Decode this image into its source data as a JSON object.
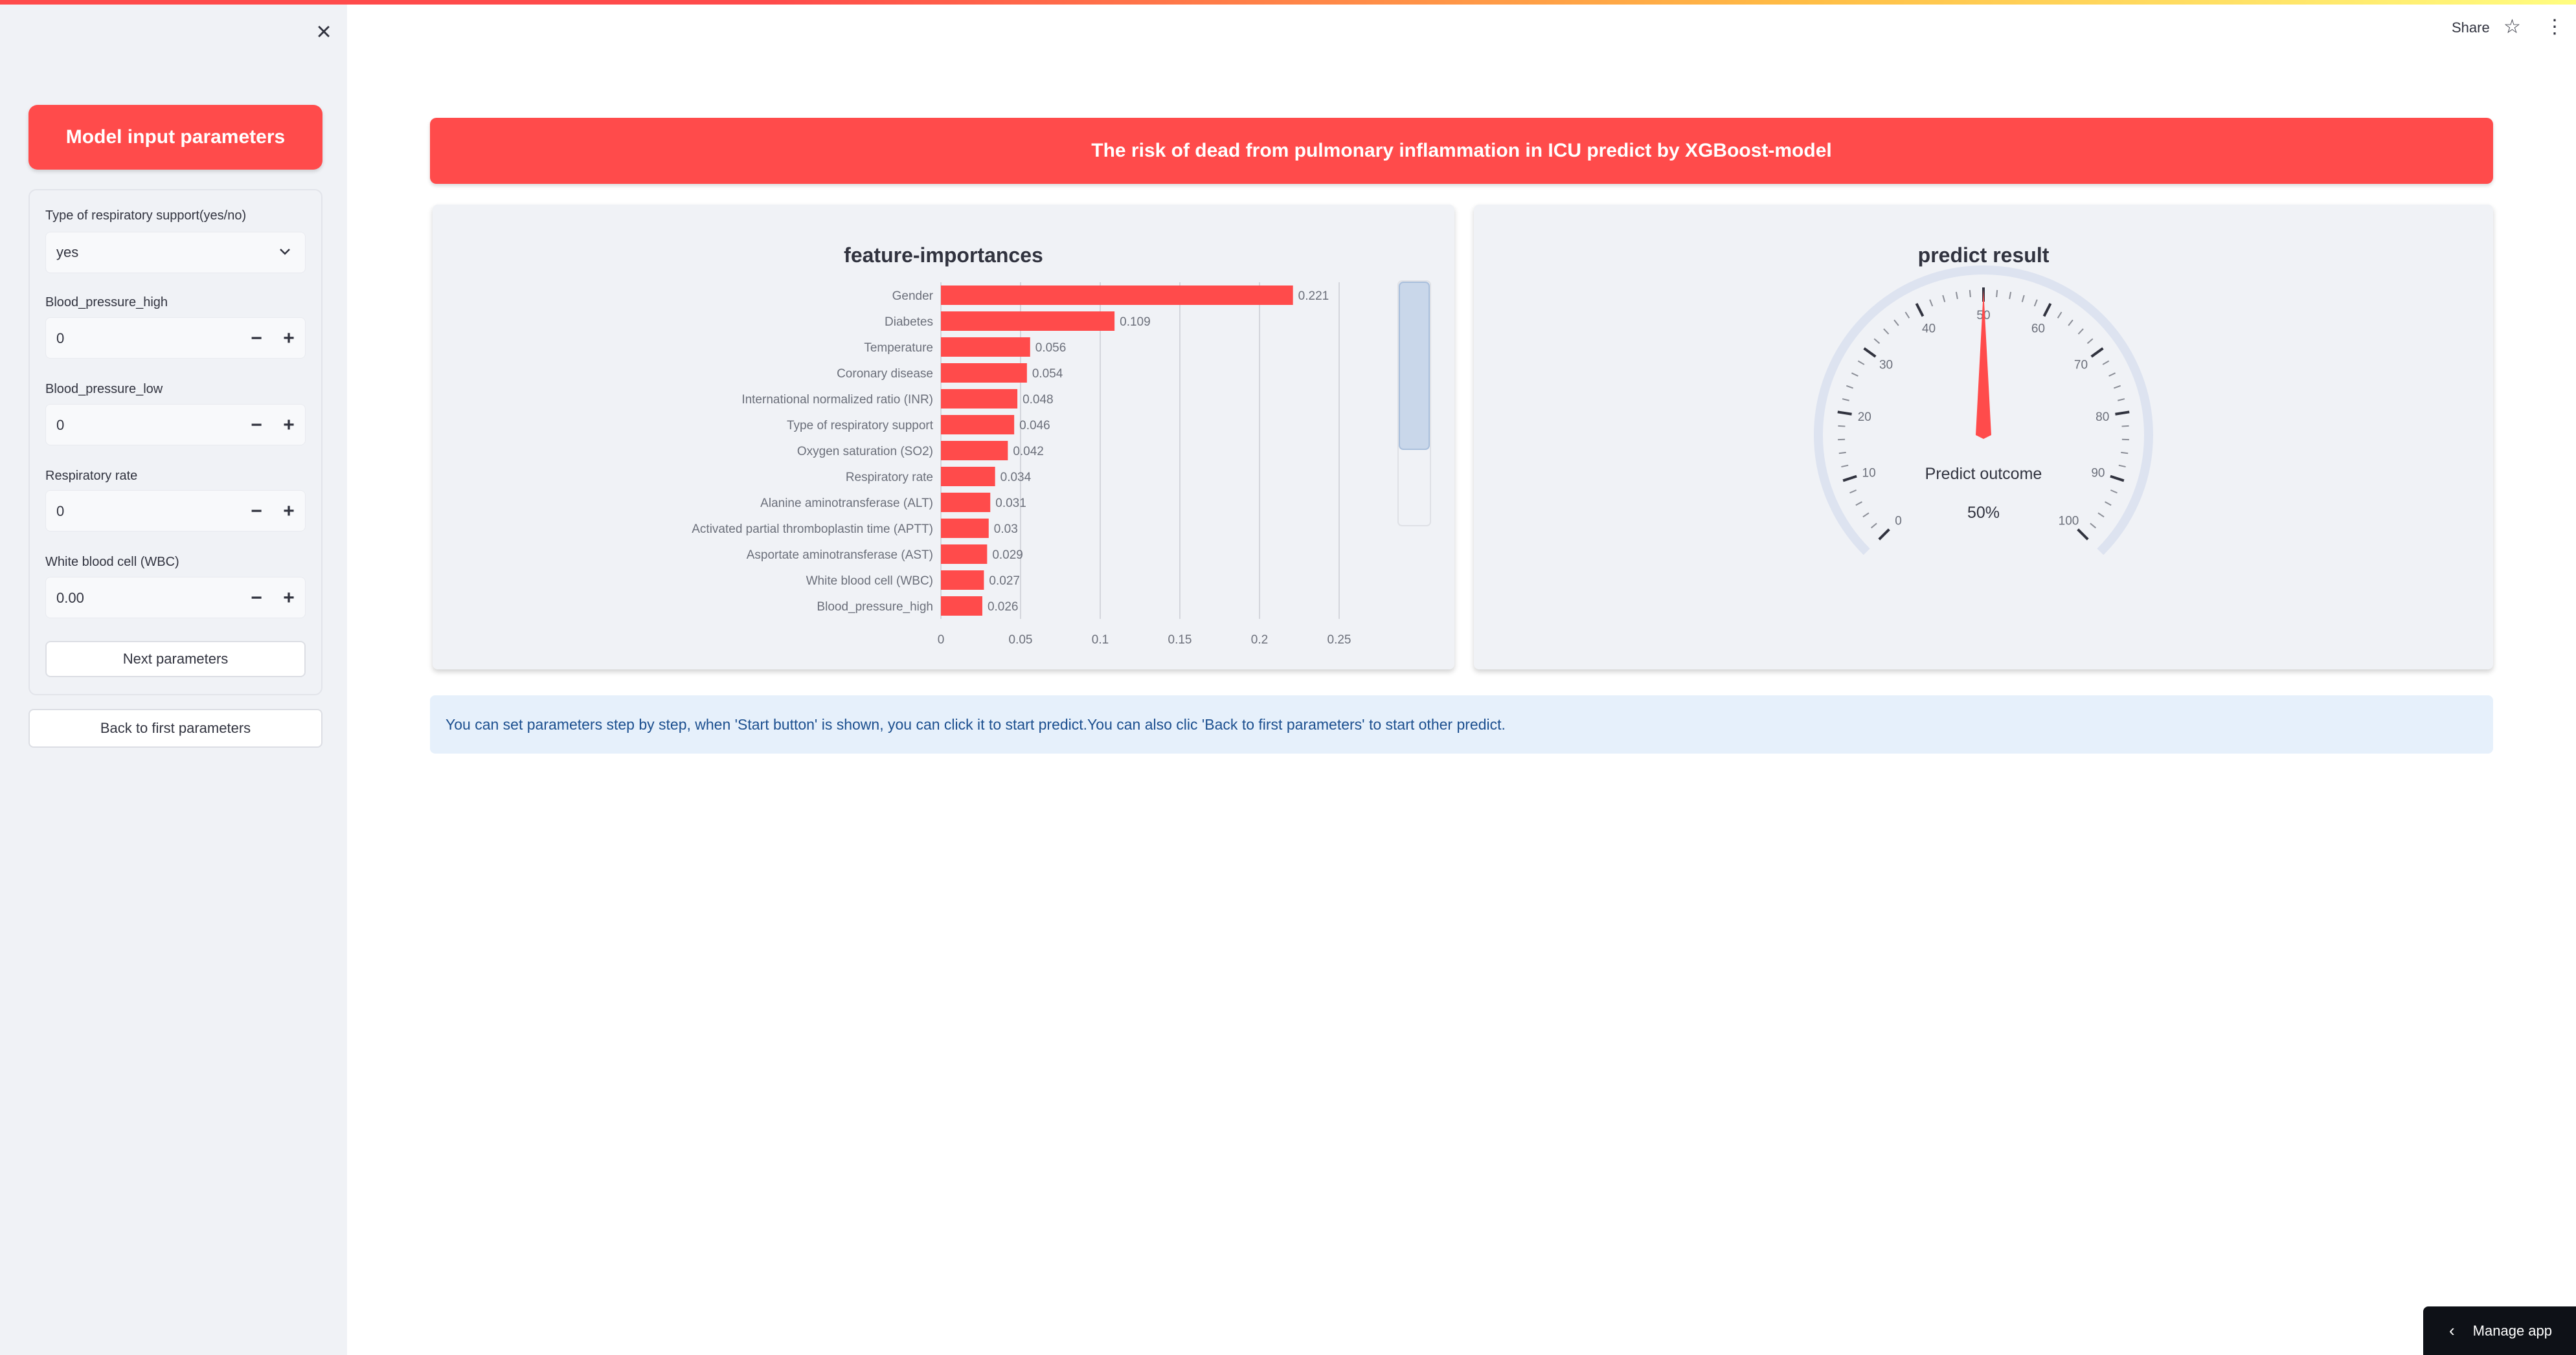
{
  "sidebar": {
    "close_icon": "×",
    "title": "Model input parameters",
    "fields": [
      {
        "label": "Type of respiratory support(yes/no)",
        "kind": "select",
        "value": "yes"
      },
      {
        "label": "Blood_pressure_high",
        "kind": "number",
        "value": "0"
      },
      {
        "label": "Blood_pressure_low",
        "kind": "number",
        "value": "0"
      },
      {
        "label": "Respiratory rate",
        "kind": "number",
        "value": "0"
      },
      {
        "label": "White blood cell (WBC)",
        "kind": "number",
        "value": "0.00"
      }
    ],
    "minus": "−",
    "plus": "+",
    "next_button": "Next parameters",
    "back_button": "Back to first parameters"
  },
  "header": {
    "share": "Share",
    "star_icon": "☆",
    "menu_icon": "⋮"
  },
  "banner": "The risk of dead from pulmonary inflammation in ICU predict by XGBoost-model",
  "feature_card": {
    "title": "feature-importances"
  },
  "gauge_card": {
    "title": "predict result",
    "label": "Predict outcome",
    "value_text": "50%"
  },
  "info_text": "You can set parameters step by step, when 'Start button' is shown, you can click it to start predict.You can also clic 'Back to first parameters' to start other predict.",
  "manage_app": {
    "arrow": "‹",
    "label": "Manage app"
  },
  "colors": {
    "accent": "#ff4b4b",
    "sidebar_bg": "#f0f2f6",
    "info_bg": "#e6f0fb",
    "info_text": "#1c4f8f"
  },
  "chart_data": [
    {
      "type": "bar",
      "orientation": "horizontal",
      "title": "feature-importances",
      "categories": [
        "Gender",
        "Diabetes",
        "Temperature",
        "Coronary disease",
        "International normalized ratio (INR)",
        "Type of respiratory support",
        "Oxygen saturation (SO2)",
        "Respiratory rate",
        "Alanine aminotransferase (ALT)",
        "Activated partial thromboplastin time (APTT)",
        "Asportate aminotransferase (AST)",
        "White blood cell (WBC)",
        "Blood_pressure_high"
      ],
      "values": [
        0.221,
        0.109,
        0.056,
        0.054,
        0.048,
        0.046,
        0.042,
        0.034,
        0.031,
        0.03,
        0.029,
        0.027,
        0.026
      ],
      "value_labels": [
        "0.221",
        "0.109",
        "0.056",
        "0.054",
        "0.048",
        "0.046",
        "0.042",
        "0.034",
        "0.031",
        "0.03",
        "0.029",
        "0.027",
        "0.026"
      ],
      "xlim": [
        0,
        0.25
      ],
      "xticks": [
        0,
        0.05,
        0.1,
        0.15,
        0.2,
        0.25
      ],
      "xtick_labels": [
        "0",
        "0.05",
        "0.1",
        "0.15",
        "0.2",
        "0.25"
      ],
      "grid": true,
      "color": "#ff4b4b"
    },
    {
      "type": "gauge",
      "title": "predict result",
      "label": "Predict outcome",
      "value": 50,
      "value_text": "50%",
      "range": [
        0,
        100
      ],
      "ticks": [
        0,
        10,
        20,
        30,
        40,
        50,
        60,
        70,
        80,
        90,
        100
      ],
      "tick_labels": [
        "0",
        "10",
        "20",
        "30",
        "40",
        "50",
        "60",
        "70",
        "80",
        "90",
        "100"
      ],
      "color": "#ff4b4b"
    }
  ]
}
